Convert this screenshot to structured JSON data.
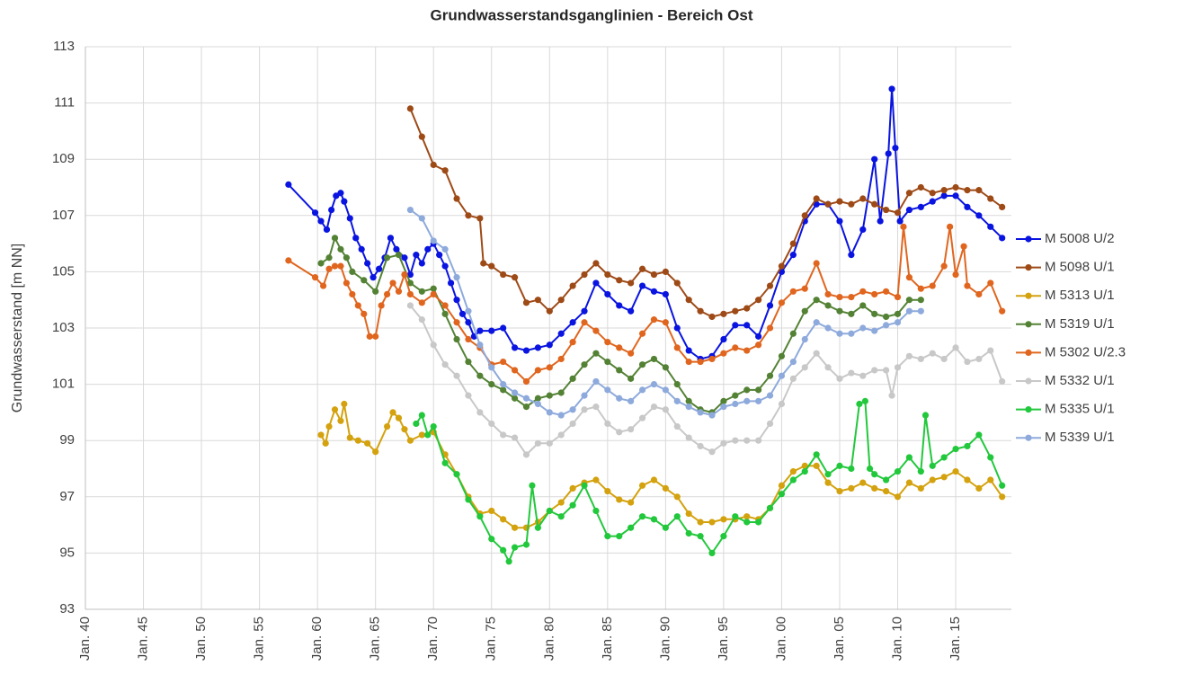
{
  "chart_data": {
    "type": "line",
    "title": "Grundwasserstandsganglinien  - Bereich Ost",
    "y_label": "Grundwasserstand [m NN]",
    "xlim": [
      1940,
      2019.8
    ],
    "ylim": [
      93,
      113
    ],
    "yticks": [
      93,
      95,
      97,
      99,
      101,
      103,
      105,
      107,
      109,
      111,
      113
    ],
    "xticks": [
      {
        "value": 1940,
        "label": "Jan. 40"
      },
      {
        "value": 1945,
        "label": "Jan. 45"
      },
      {
        "value": 1950,
        "label": "Jan. 50"
      },
      {
        "value": 1955,
        "label": "Jan. 55"
      },
      {
        "value": 1960,
        "label": "Jan. 60"
      },
      {
        "value": 1965,
        "label": "Jan. 65"
      },
      {
        "value": 1970,
        "label": "Jan. 70"
      },
      {
        "value": 1975,
        "label": "Jan. 75"
      },
      {
        "value": 1980,
        "label": "Jan. 80"
      },
      {
        "value": 1985,
        "label": "Jan. 85"
      },
      {
        "value": 1990,
        "label": "Jan. 90"
      },
      {
        "value": 1995,
        "label": "Jan. 95"
      },
      {
        "value": 2000,
        "label": "Jan. 00"
      },
      {
        "value": 2005,
        "label": "Jan. 05"
      },
      {
        "value": 2010,
        "label": "Jan. 10"
      },
      {
        "value": 2015,
        "label": "Jan. 15"
      }
    ],
    "grid": true,
    "legend": "right",
    "series": [
      {
        "name": "M 5008 U/2",
        "color": "#0a14e0",
        "x": [
          1957.5,
          1959.8,
          1960.3,
          1960.8,
          1961.2,
          1961.6,
          1962,
          1962.3,
          1962.8,
          1963.3,
          1963.8,
          1964.3,
          1964.8,
          1965.3,
          1965.8,
          1966.3,
          1966.8,
          1967.5,
          1968,
          1968.5,
          1969,
          1969.5,
          1970,
          1970.5,
          1971,
          1971.5,
          1972,
          1972.5,
          1973,
          1973.5,
          1974,
          1975,
          1976,
          1977,
          1978,
          1979,
          1980,
          1981,
          1982,
          1983,
          1984,
          1985,
          1986,
          1987,
          1988,
          1989,
          1990,
          1991,
          1992,
          1993,
          1994,
          1995,
          1996,
          1997,
          1998,
          1999,
          2000,
          2001,
          2002,
          2003,
          2004,
          2005,
          2006,
          2007,
          2008,
          2008.5,
          2009.2,
          2009.5,
          2009.8,
          2010.2,
          2011,
          2012,
          2013,
          2014,
          2015,
          2016,
          2017,
          2018,
          2019
        ],
        "values": [
          108.1,
          107.1,
          106.8,
          106.5,
          107.2,
          107.7,
          107.8,
          107.5,
          106.9,
          106.2,
          105.8,
          105.3,
          104.8,
          105.1,
          105.5,
          106.2,
          105.8,
          105.5,
          104.9,
          105.6,
          105.3,
          105.8,
          106,
          105.6,
          105.2,
          104.6,
          104,
          103.5,
          103.2,
          102.7,
          102.9,
          102.9,
          103,
          102.3,
          102.2,
          102.3,
          102.4,
          102.8,
          103.2,
          103.6,
          104.6,
          104.2,
          103.8,
          103.6,
          104.5,
          104.3,
          104.2,
          103,
          102.2,
          101.9,
          102,
          102.6,
          103.1,
          103.1,
          102.7,
          103.8,
          105,
          105.6,
          106.8,
          107.4,
          107.4,
          106.8,
          105.6,
          106.5,
          109,
          106.8,
          109.2,
          111.5,
          109.4,
          106.8,
          107.2,
          107.3,
          107.5,
          107.7,
          107.7,
          107.3,
          107,
          106.6,
          106.2
        ]
      },
      {
        "name": "M 5098 U/1",
        "color": "#9e4a17",
        "x": [
          1968,
          1969,
          1970,
          1971,
          1972,
          1973,
          1974,
          1974.3,
          1975,
          1976,
          1977,
          1978,
          1979,
          1980,
          1981,
          1982,
          1983,
          1984,
          1985,
          1986,
          1987,
          1988,
          1989,
          1990,
          1991,
          1992,
          1993,
          1994,
          1995,
          1996,
          1997,
          1998,
          1999,
          2000,
          2001,
          2002,
          2003,
          2004,
          2005,
          2006,
          2007,
          2008,
          2009,
          2010,
          2011,
          2012,
          2013,
          2014,
          2015,
          2016,
          2017,
          2018,
          2019
        ],
        "values": [
          110.8,
          109.8,
          108.8,
          108.6,
          107.6,
          107,
          106.9,
          105.3,
          105.2,
          104.9,
          104.8,
          103.9,
          104,
          103.6,
          104,
          104.5,
          104.9,
          105.3,
          104.9,
          104.7,
          104.6,
          105.1,
          104.9,
          105,
          104.6,
          104,
          103.6,
          103.4,
          103.5,
          103.6,
          103.7,
          104,
          104.5,
          105.2,
          106,
          107,
          107.6,
          107.4,
          107.5,
          107.4,
          107.6,
          107.4,
          107.2,
          107.1,
          107.8,
          108,
          107.8,
          107.9,
          108,
          107.9,
          107.9,
          107.6,
          107.3
        ]
      },
      {
        "name": "M 5313 U/1",
        "color": "#d4a20e",
        "x": [
          1960.3,
          1960.7,
          1961,
          1961.5,
          1962,
          1962.3,
          1962.8,
          1963.5,
          1964.3,
          1965,
          1966,
          1966.5,
          1967,
          1967.5,
          1968,
          1969,
          1970,
          1971,
          1972,
          1973,
          1974,
          1975,
          1976,
          1977,
          1978,
          1979,
          1980,
          1981,
          1982,
          1983,
          1984,
          1985,
          1986,
          1987,
          1988,
          1989,
          1990,
          1991,
          1992,
          1993,
          1994,
          1995,
          1996,
          1997,
          1998,
          1999,
          2000,
          2001,
          2002,
          2003,
          2004,
          2005,
          2006,
          2007,
          2008,
          2009,
          2010,
          2011,
          2012,
          2013,
          2014,
          2015,
          2016,
          2017,
          2018,
          2019
        ],
        "values": [
          99.2,
          98.9,
          99.5,
          100.1,
          99.7,
          100.3,
          99.1,
          99,
          98.9,
          98.6,
          99.5,
          100,
          99.8,
          99.4,
          99,
          99.2,
          99.3,
          98.5,
          97.8,
          97,
          96.4,
          96.5,
          96.2,
          95.9,
          95.9,
          96.1,
          96.5,
          96.8,
          97.3,
          97.5,
          97.6,
          97.2,
          96.9,
          96.8,
          97.4,
          97.6,
          97.3,
          97,
          96.4,
          96.1,
          96.1,
          96.2,
          96.2,
          96.3,
          96.2,
          96.6,
          97.4,
          97.9,
          98.1,
          98.1,
          97.5,
          97.2,
          97.3,
          97.5,
          97.3,
          97.2,
          97,
          97.5,
          97.3,
          97.6,
          97.7,
          97.9,
          97.6,
          97.3,
          97.6,
          97
        ]
      },
      {
        "name": "M 5319 U/1",
        "color": "#548235",
        "x": [
          1960.3,
          1961,
          1961.5,
          1962,
          1962.5,
          1963,
          1964,
          1965,
          1966,
          1967,
          1968,
          1969,
          1970,
          1971,
          1972,
          1973,
          1974,
          1975,
          1976,
          1977,
          1978,
          1979,
          1980,
          1981,
          1982,
          1983,
          1984,
          1985,
          1986,
          1987,
          1988,
          1989,
          1990,
          1991,
          1992,
          1993,
          1994,
          1995,
          1996,
          1997,
          1998,
          1999,
          2000,
          2001,
          2002,
          2003,
          2004,
          2005,
          2006,
          2007,
          2008,
          2009,
          2010,
          2011,
          2012
        ],
        "values": [
          105.3,
          105.5,
          106.2,
          105.8,
          105.5,
          105,
          104.7,
          104.3,
          105.5,
          105.6,
          104.6,
          104.3,
          104.4,
          103.5,
          102.6,
          101.8,
          101.3,
          101,
          100.8,
          100.5,
          100.2,
          100.5,
          100.6,
          100.7,
          101.2,
          101.7,
          102.1,
          101.8,
          101.5,
          101.2,
          101.7,
          101.9,
          101.6,
          101,
          100.4,
          100.1,
          100,
          100.4,
          100.6,
          100.8,
          100.8,
          101.3,
          102,
          102.8,
          103.6,
          104,
          103.8,
          103.6,
          103.5,
          103.8,
          103.5,
          103.4,
          103.5,
          104,
          104
        ]
      },
      {
        "name": "M 5302 U/2.3",
        "color": "#e0661f",
        "x": [
          1957.5,
          1959.8,
          1960.5,
          1961,
          1961.5,
          1962,
          1962.5,
          1963,
          1963.5,
          1964,
          1964.5,
          1965,
          1965.5,
          1966,
          1966.5,
          1967,
          1967.5,
          1968,
          1969,
          1970,
          1971,
          1972,
          1973,
          1974,
          1975,
          1976,
          1977,
          1978,
          1979,
          1980,
          1981,
          1982,
          1983,
          1984,
          1985,
          1986,
          1987,
          1988,
          1989,
          1990,
          1991,
          1992,
          1993,
          1994,
          1995,
          1996,
          1997,
          1998,
          1999,
          2000,
          2001,
          2002,
          2003,
          2004,
          2005,
          2006,
          2007,
          2008,
          2009,
          2010,
          2010.5,
          2011,
          2012,
          2013,
          2014,
          2014.5,
          2015,
          2015.7,
          2016,
          2017,
          2018,
          2019
        ],
        "values": [
          105.4,
          104.8,
          104.5,
          105.1,
          105.2,
          105.2,
          104.6,
          104.2,
          103.8,
          103.5,
          102.7,
          102.7,
          103.8,
          104.2,
          104.6,
          104.3,
          104.9,
          104.2,
          103.9,
          104.2,
          103.8,
          103.2,
          102.6,
          102.3,
          101.7,
          101.8,
          101.5,
          101.1,
          101.5,
          101.6,
          101.9,
          102.5,
          103.2,
          102.9,
          102.5,
          102.3,
          102.1,
          102.8,
          103.3,
          103.2,
          102.3,
          101.8,
          101.8,
          101.9,
          102.1,
          102.3,
          102.2,
          102.4,
          103,
          103.9,
          104.3,
          104.4,
          105.3,
          104.2,
          104.1,
          104.1,
          104.3,
          104.2,
          104.3,
          104.1,
          106.6,
          104.8,
          104.4,
          104.5,
          105.2,
          106.6,
          104.9,
          105.9,
          104.5,
          104.2,
          104.6,
          103.6
        ]
      },
      {
        "name": "M 5332 U/1",
        "color": "#c8c8c8",
        "x": [
          1968,
          1969,
          1970,
          1971,
          1972,
          1973,
          1974,
          1975,
          1976,
          1977,
          1978,
          1979,
          1980,
          1981,
          1982,
          1983,
          1984,
          1985,
          1986,
          1987,
          1988,
          1989,
          1990,
          1991,
          1992,
          1993,
          1994,
          1995,
          1996,
          1997,
          1998,
          1999,
          2000,
          2001,
          2002,
          2003,
          2004,
          2005,
          2006,
          2007,
          2008,
          2009,
          2009.5,
          2010,
          2011,
          2012,
          2013,
          2014,
          2015,
          2016,
          2017,
          2018,
          2019
        ],
        "values": [
          103.8,
          103.3,
          102.4,
          101.7,
          101.3,
          100.6,
          100,
          99.6,
          99.2,
          99.1,
          98.5,
          98.9,
          98.9,
          99.2,
          99.6,
          100.1,
          100.2,
          99.6,
          99.3,
          99.4,
          99.8,
          100.2,
          100.1,
          99.5,
          99.1,
          98.8,
          98.6,
          98.9,
          99,
          99,
          99,
          99.6,
          100.3,
          101.2,
          101.6,
          102.1,
          101.6,
          101.2,
          101.4,
          101.3,
          101.5,
          101.5,
          100.6,
          101.6,
          102,
          101.9,
          102.1,
          101.9,
          102.3,
          101.8,
          101.9,
          102.2,
          101.1
        ]
      },
      {
        "name": "M 5335 U/1",
        "color": "#22c83c",
        "x": [
          1968.5,
          1969,
          1969.5,
          1970,
          1971,
          1972,
          1973,
          1974,
          1975,
          1976,
          1976.5,
          1977,
          1978,
          1978.5,
          1979,
          1980,
          1981,
          1982,
          1983,
          1984,
          1985,
          1986,
          1987,
          1988,
          1989,
          1990,
          1991,
          1992,
          1993,
          1994,
          1995,
          1996,
          1997,
          1998,
          1999,
          2000,
          2001,
          2002,
          2003,
          2004,
          2005,
          2006,
          2006.7,
          2007.2,
          2007.6,
          2008,
          2009,
          2010,
          2011,
          2012,
          2012.4,
          2013,
          2014,
          2015,
          2016,
          2017,
          2018,
          2019
        ],
        "values": [
          99.6,
          99.9,
          99.2,
          99.5,
          98.2,
          97.8,
          96.9,
          96.3,
          95.5,
          95.1,
          94.7,
          95.2,
          95.3,
          97.4,
          95.9,
          96.5,
          96.3,
          96.7,
          97.4,
          96.5,
          95.6,
          95.6,
          95.9,
          96.3,
          96.2,
          95.9,
          96.3,
          95.7,
          95.6,
          95,
          95.6,
          96.3,
          96.1,
          96.1,
          96.6,
          97.1,
          97.6,
          97.9,
          98.5,
          97.8,
          98.1,
          98,
          100.3,
          100.4,
          98,
          97.8,
          97.6,
          97.9,
          98.4,
          97.9,
          99.9,
          98.1,
          98.4,
          98.7,
          98.8,
          99.2,
          98.4,
          97.4
        ]
      },
      {
        "name": "M 5339 U/1",
        "color": "#8eaadc",
        "x": [
          1968,
          1969,
          1970,
          1971,
          1972,
          1973,
          1974,
          1975,
          1976,
          1977,
          1978,
          1979,
          1980,
          1981,
          1982,
          1983,
          1984,
          1985,
          1986,
          1987,
          1988,
          1989,
          1990,
          1991,
          1992,
          1993,
          1994,
          1995,
          1996,
          1997,
          1998,
          1999,
          2000,
          2001,
          2002,
          2003,
          2004,
          2005,
          2006,
          2007,
          2008,
          2009,
          2010,
          2011,
          2012
        ],
        "values": [
          107.2,
          106.9,
          106.1,
          105.8,
          104.8,
          103.6,
          102.4,
          101.6,
          101,
          100.7,
          100.5,
          100.3,
          100,
          99.9,
          100.1,
          100.6,
          101.1,
          100.8,
          100.5,
          100.4,
          100.8,
          101,
          100.8,
          100.4,
          100.2,
          100,
          99.9,
          100.2,
          100.3,
          100.4,
          100.4,
          100.6,
          101.3,
          101.8,
          102.6,
          103.2,
          103,
          102.8,
          102.8,
          103,
          102.9,
          103.1,
          103.2,
          103.6,
          103.6
        ]
      }
    ]
  }
}
